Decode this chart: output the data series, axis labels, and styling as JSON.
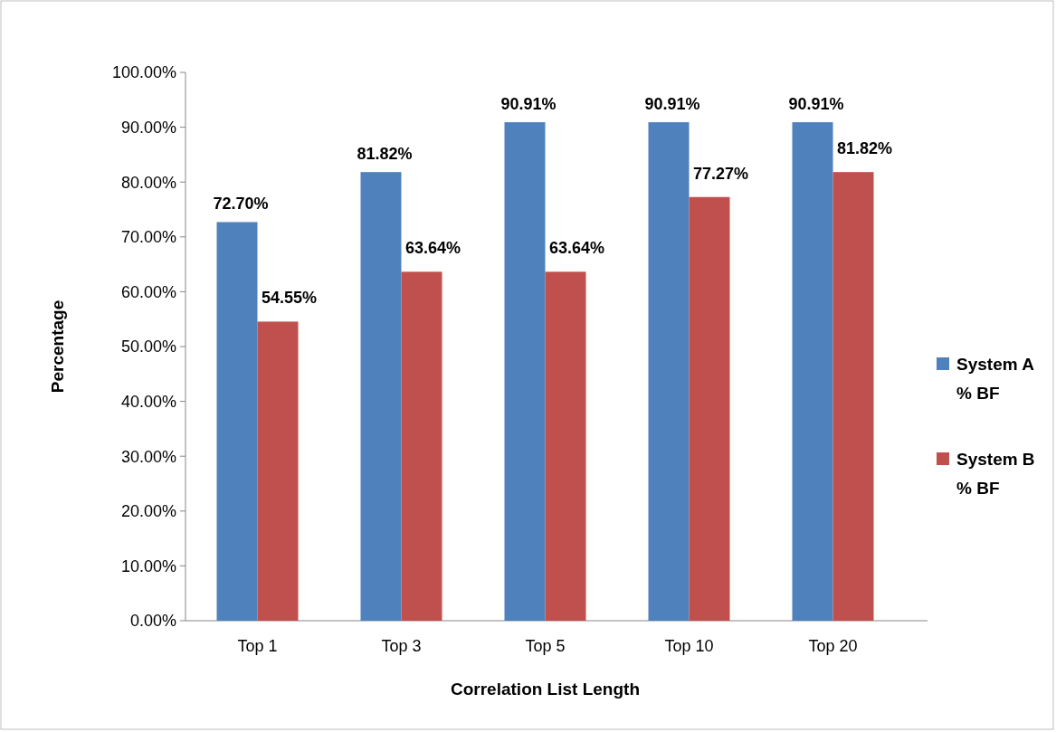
{
  "chart_data": {
    "type": "bar",
    "xlabel": "Correlation List Length",
    "ylabel": "Percentage",
    "categories": [
      "Top 1",
      "Top 3",
      "Top 5",
      "Top 10",
      "Top 20"
    ],
    "series": [
      {
        "name": "System A % BF",
        "color": "#4f81bd",
        "values": [
          72.7,
          81.82,
          90.91,
          90.91,
          90.91
        ],
        "value_labels": [
          "72.70%",
          "81.82%",
          "90.91%",
          "90.91%",
          "90.91%"
        ]
      },
      {
        "name": "System B % BF",
        "color": "#c0504d",
        "values": [
          54.55,
          63.64,
          63.64,
          77.27,
          81.82
        ],
        "value_labels": [
          "54.55%",
          "63.64%",
          "63.64%",
          "77.27%",
          "81.82%"
        ]
      }
    ],
    "ylim": [
      0,
      100
    ],
    "yticks": [
      {
        "value": 0,
        "label": "0.00%"
      },
      {
        "value": 10,
        "label": "10.00%"
      },
      {
        "value": 20,
        "label": "20.00%"
      },
      {
        "value": 30,
        "label": "30.00%"
      },
      {
        "value": 40,
        "label": "40.00%"
      },
      {
        "value": 50,
        "label": "50.00%"
      },
      {
        "value": 60,
        "label": "60.00%"
      },
      {
        "value": 70,
        "label": "70.00%"
      },
      {
        "value": 80,
        "label": "80.00%"
      },
      {
        "value": 90,
        "label": "90.00%"
      },
      {
        "value": 100,
        "label": "100.00%"
      }
    ],
    "legend": "right",
    "grid": false
  }
}
